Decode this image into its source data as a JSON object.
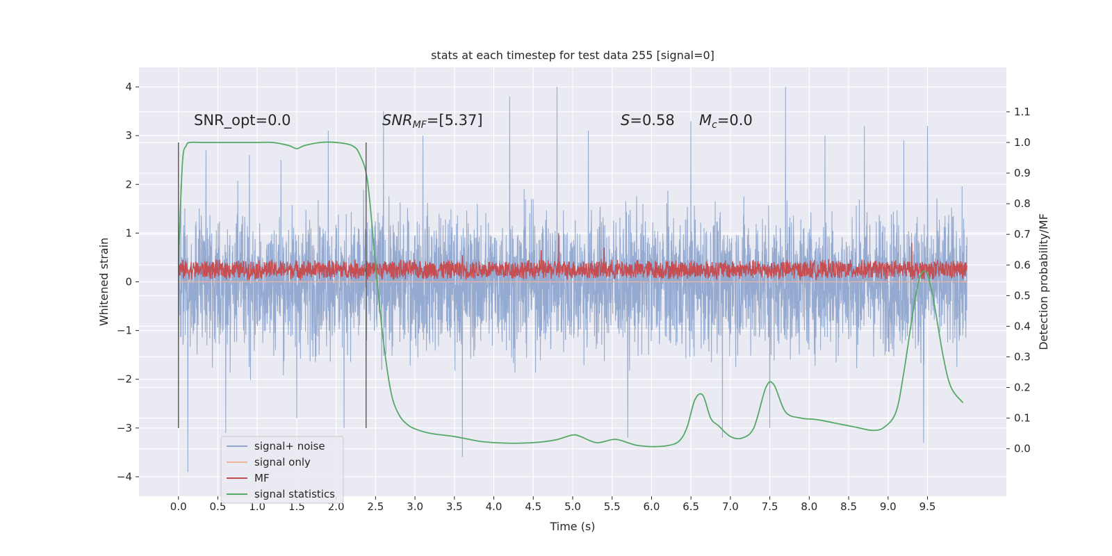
{
  "chart_data": {
    "type": "line",
    "title": "stats at each timestep for test data 255 [signal=0]",
    "xlabel": "Time (s)",
    "ylabel": "Whitened strain",
    "y2label": "Detection probability/MF",
    "xlim": [
      -0.5,
      10.5
    ],
    "ylim": [
      -4.4,
      4.4
    ],
    "y2lim": [
      -0.155,
      1.245
    ],
    "xticks": [
      0.0,
      0.5,
      1.0,
      1.5,
      2.0,
      2.5,
      3.0,
      3.5,
      4.0,
      4.5,
      5.0,
      5.5,
      6.0,
      6.5,
      7.0,
      7.5,
      8.0,
      8.5,
      9.0,
      9.5
    ],
    "xtick_labels": [
      "0.0",
      "0.5",
      "1.0",
      "1.5",
      "2.0",
      "2.5",
      "3.0",
      "3.5",
      "4.0",
      "4.5",
      "5.0",
      "5.5",
      "6.0",
      "6.5",
      "7.0",
      "7.5",
      "8.0",
      "8.5",
      "9.0",
      "9.5"
    ],
    "yticks": [
      4,
      3,
      2,
      1,
      0,
      -1,
      -2,
      -3,
      -4
    ],
    "ytick_labels": [
      "4",
      "3",
      "2",
      "1",
      "0",
      "−1",
      "−2",
      "−3",
      "−4"
    ],
    "y2ticks": [
      1.1,
      1.0,
      0.9,
      0.8,
      0.7,
      0.6,
      0.5,
      0.4,
      0.3,
      0.2,
      0.1,
      0.0
    ],
    "y2tick_labels": [
      "1.1",
      "1.0",
      "0.9",
      "0.8",
      "0.7",
      "0.6",
      "0.5",
      "0.4",
      "0.3",
      "0.2",
      "0.1",
      "0.0"
    ],
    "grid": true,
    "legend_position": "lower-left",
    "annotations": {
      "snr_opt": "SNR_opt=0.0",
      "snr_mf_base": "SNR",
      "snr_mf_sub": "MF",
      "snr_mf_rest": "=[5.37]",
      "s_base": "S",
      "s_rest": "=0.58",
      "mc_base": "M",
      "mc_sub": "c",
      "mc_rest": "=0.0"
    },
    "vlines": [
      0.0,
      2.38
    ],
    "series": [
      {
        "name": "signal+ noise",
        "color": "#8fa6cf",
        "axis": "left",
        "kind": "noise",
        "x_range": [
          0.0,
          10.0
        ],
        "peaks": [
          [
            0.03,
            2.0
          ],
          [
            0.12,
            -3.9
          ],
          [
            0.35,
            2.7
          ],
          [
            0.6,
            -3.1
          ],
          [
            0.9,
            2.6
          ],
          [
            1.3,
            2.5
          ],
          [
            1.5,
            -2.8
          ],
          [
            1.9,
            3.1
          ],
          [
            2.1,
            -3.0
          ],
          [
            2.6,
            3.5
          ],
          [
            3.1,
            3.0
          ],
          [
            3.6,
            -3.6
          ],
          [
            4.2,
            3.8
          ],
          [
            4.8,
            4.0
          ],
          [
            5.2,
            3.1
          ],
          [
            5.7,
            -3.2
          ],
          [
            6.5,
            3.3
          ],
          [
            6.9,
            -3.2
          ],
          [
            7.5,
            -3.0
          ],
          [
            7.7,
            4.0
          ],
          [
            8.2,
            3.0
          ],
          [
            8.7,
            3.2
          ],
          [
            9.2,
            2.9
          ],
          [
            9.5,
            3.2
          ],
          [
            9.45,
            -3.3
          ]
        ]
      },
      {
        "name": "signal only",
        "color": "#f0b49c",
        "axis": "left",
        "kind": "flat",
        "x": [
          0.0,
          10.0
        ],
        "y": [
          0.0,
          0.0
        ]
      },
      {
        "name": "MF",
        "color": "#c44e52",
        "axis": "left",
        "kind": "band",
        "x_range": [
          0.0,
          10.0
        ],
        "center": 0.25,
        "amplitude": 0.22,
        "spikes": [
          [
            4.82,
            1.0
          ],
          [
            4.6,
            0.65
          ],
          [
            5.4,
            0.7
          ],
          [
            9.3,
            0.8
          ],
          [
            3.6,
            0.55
          ]
        ]
      },
      {
        "name": "signal statistics",
        "color": "#55a868",
        "axis": "right",
        "kind": "line",
        "x": [
          0.0,
          0.05,
          0.1,
          0.15,
          0.3,
          0.6,
          1.0,
          1.2,
          1.4,
          1.5,
          1.6,
          1.8,
          2.0,
          2.2,
          2.3,
          2.4,
          2.5,
          2.6,
          2.7,
          2.8,
          2.9,
          3.0,
          3.2,
          3.5,
          3.8,
          4.0,
          4.3,
          4.6,
          4.8,
          5.0,
          5.1,
          5.3,
          5.5,
          5.6,
          5.8,
          6.0,
          6.2,
          6.35,
          6.45,
          6.55,
          6.65,
          6.75,
          6.85,
          7.0,
          7.15,
          7.3,
          7.45,
          7.55,
          7.7,
          7.9,
          8.1,
          8.4,
          8.6,
          8.8,
          8.95,
          9.1,
          9.2,
          9.35,
          9.45,
          9.55,
          9.7,
          9.8,
          9.95
        ],
        "y": [
          0.6,
          0.93,
          0.99,
          1.0,
          1.0,
          1.0,
          1.0,
          1.0,
          0.99,
          0.98,
          0.99,
          1.0,
          1.0,
          0.99,
          0.96,
          0.87,
          0.6,
          0.35,
          0.18,
          0.11,
          0.08,
          0.065,
          0.05,
          0.04,
          0.025,
          0.02,
          0.018,
          0.022,
          0.03,
          0.045,
          0.04,
          0.02,
          0.03,
          0.028,
          0.012,
          0.007,
          0.01,
          0.025,
          0.07,
          0.16,
          0.175,
          0.1,
          0.075,
          0.04,
          0.035,
          0.07,
          0.2,
          0.21,
          0.12,
          0.1,
          0.095,
          0.08,
          0.07,
          0.06,
          0.07,
          0.12,
          0.25,
          0.5,
          0.58,
          0.52,
          0.3,
          0.2,
          0.15
        ]
      }
    ]
  }
}
